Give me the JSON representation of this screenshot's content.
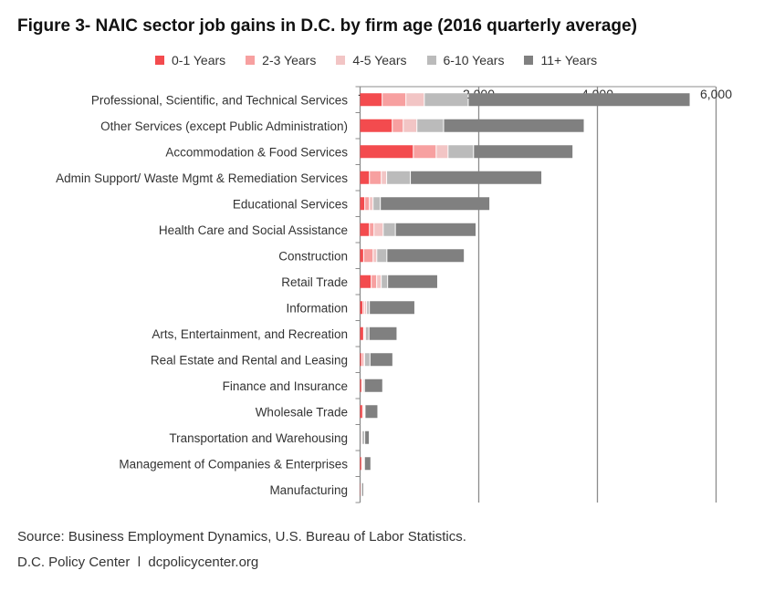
{
  "title": "Figure 3- NAIC sector job gains in D.C. by firm age (2016 quarterly average)",
  "source": "Source: Business Employment Dynamics, U.S. Bureau of Labor Statistics.",
  "credit": "D.C. Policy Center  l  dcpolicycenter.org",
  "chart_data": {
    "type": "bar",
    "orientation": "horizontal",
    "stacked": true,
    "title": "Figure 3- NAIC sector job gains in D.C. by firm age (2016 quarterly average)",
    "xlim": [
      0,
      6000
    ],
    "ticks": [
      0,
      2000,
      4000,
      6000
    ],
    "tick_labels": [
      "-",
      "2,000",
      "4,000",
      "6,000"
    ],
    "grid": true,
    "legend": "top",
    "categories": [
      "Professional, Scientific, and Technical Services",
      "Other Services (except Public Administration)",
      "Accommodation & Food Services",
      "Admin Support/ Waste Mgmt & Remediation Services",
      "Educational Services",
      "Health Care and Social Assistance",
      "Construction",
      "Retail Trade",
      "Information",
      "Arts, Entertainment, and Recreation",
      "Real Estate and Rental and Leasing",
      "Finance and Insurance",
      "Wholesale Trade",
      "Transportation and Warehousing",
      "Management of Companies & Enterprises",
      "Manufacturing"
    ],
    "series": [
      {
        "name": "0-1 Years",
        "color": "#F34B4E",
        "values": [
          380,
          550,
          905,
          165,
          87,
          165,
          67,
          195,
          56,
          67,
          36,
          36,
          51,
          10,
          36,
          20
        ]
      },
      {
        "name": "2-3 Years",
        "color": "#F7A0A0",
        "values": [
          400,
          185,
          385,
          200,
          77,
          77,
          160,
          92,
          26,
          10,
          36,
          15,
          20,
          10,
          10,
          5
        ]
      },
      {
        "name": "4-5 Years",
        "color": "#F2C5C5",
        "values": [
          310,
          230,
          200,
          90,
          62,
          155,
          62,
          77,
          36,
          20,
          10,
          10,
          10,
          20,
          20,
          5
        ]
      },
      {
        "name": "6-10 Years",
        "color": "#BBBBBB",
        "values": [
          740,
          450,
          430,
          400,
          123,
          205,
          170,
          108,
          46,
          60,
          92,
          20,
          10,
          46,
          15,
          5
        ]
      },
      {
        "name": "11+ Years",
        "color": "#808080",
        "values": [
          3740,
          2370,
          1675,
          2215,
          1845,
          1360,
          1305,
          843,
          766,
          473,
          385,
          308,
          216,
          77,
          108,
          31
        ]
      }
    ]
  }
}
